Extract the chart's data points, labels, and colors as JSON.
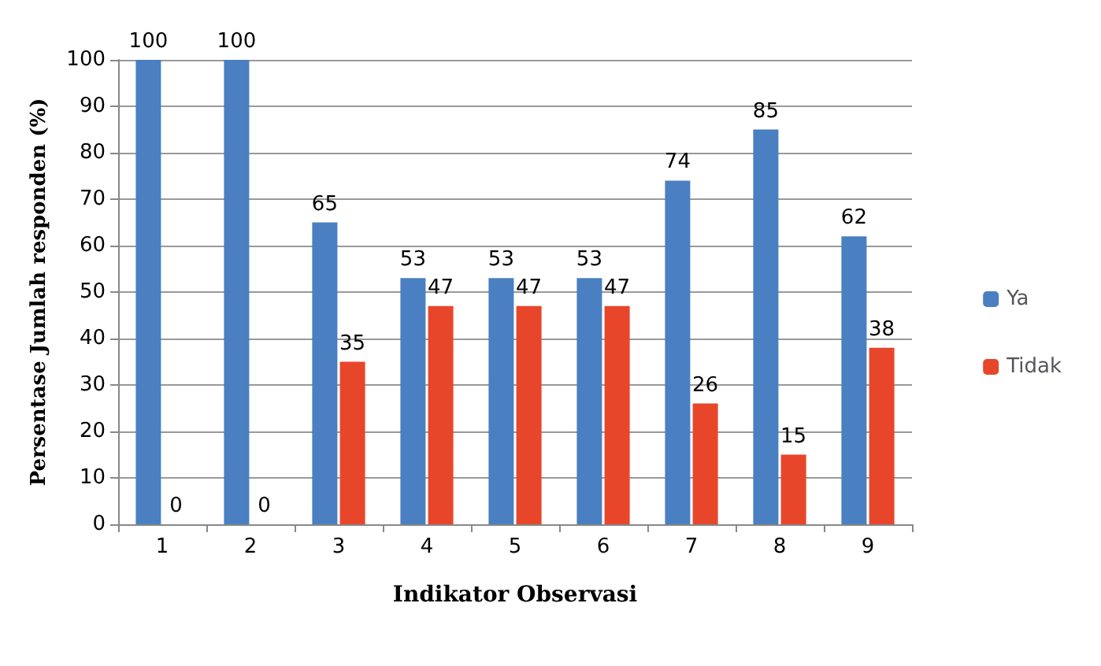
{
  "chart_data": {
    "type": "bar",
    "xlabel": "Indikator Observasi",
    "ylabel": "Persentase Jumlah responden (%)",
    "categories": [
      "1",
      "2",
      "3",
      "4",
      "5",
      "6",
      "7",
      "8",
      "9"
    ],
    "series": [
      {
        "name": "Ya",
        "color": "#4a7fc1",
        "values": [
          100,
          100,
          65,
          53,
          53,
          53,
          74,
          85,
          62
        ]
      },
      {
        "name": "Tidak",
        "color": "#e8462b",
        "values": [
          0,
          0,
          35,
          47,
          47,
          47,
          26,
          15,
          38
        ]
      }
    ],
    "ylim": [
      0,
      100
    ],
    "yticks": [
      0,
      10,
      20,
      30,
      40,
      50,
      60,
      70,
      80,
      90,
      100
    ],
    "grid": "y",
    "legend": "right",
    "data_labels": true
  }
}
